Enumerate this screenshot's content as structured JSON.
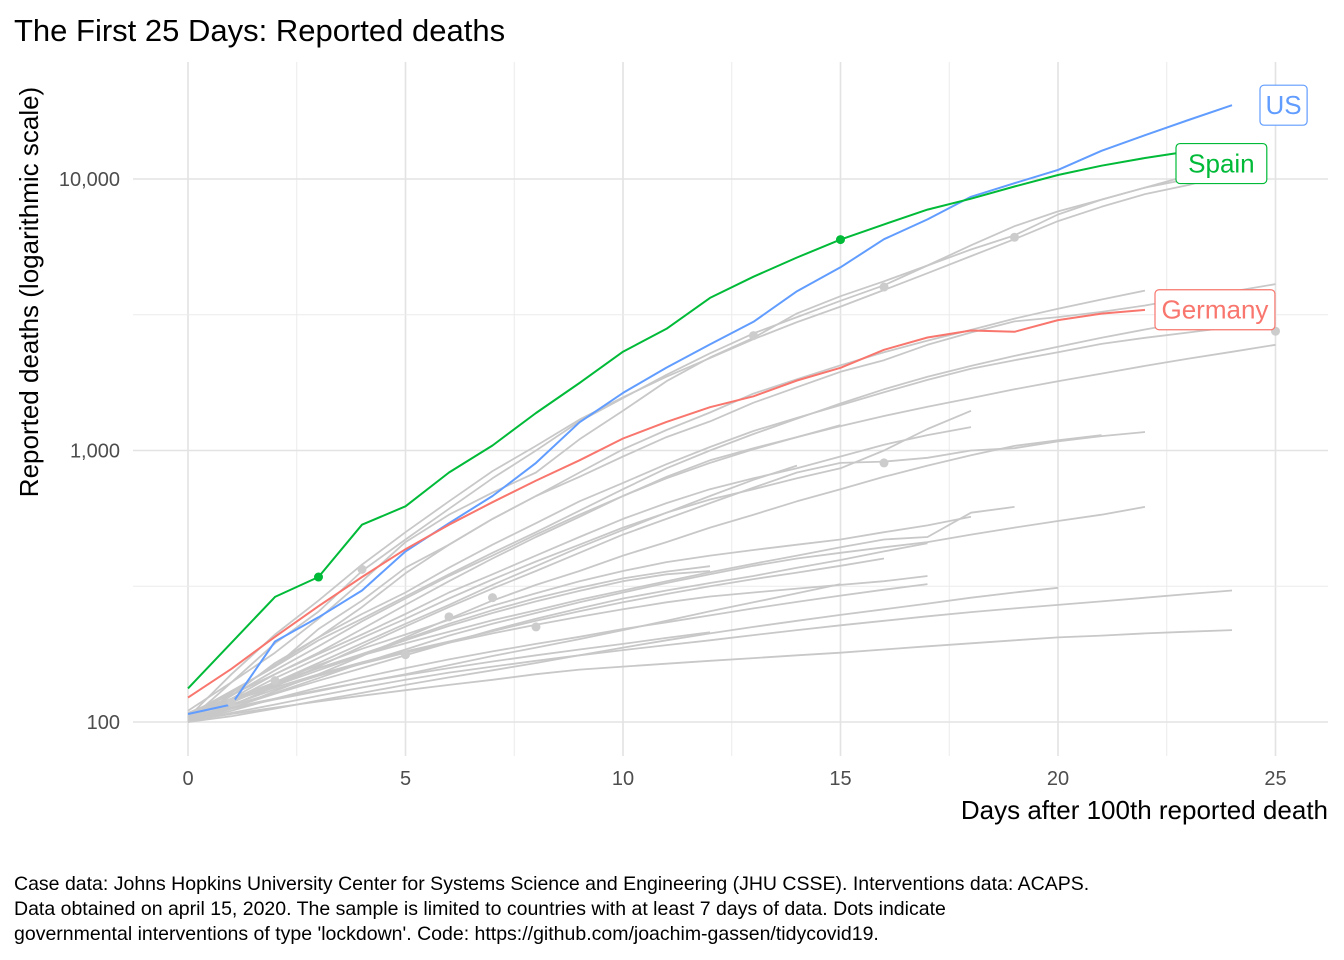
{
  "chart_data": {
    "type": "line",
    "title": "The First 25 Days: Reported deaths",
    "xlabel": "Days after 100th reported death",
    "ylabel": "Reported deaths (logarithmic scale)",
    "y_scale": "log10",
    "xlim": [
      0,
      25
    ],
    "ylim": [
      100,
      19000
    ],
    "x_ticks": [
      0,
      5,
      10,
      15,
      20,
      25
    ],
    "x_tick_labels": [
      "0",
      "5",
      "10",
      "15",
      "20",
      "25"
    ],
    "y_ticks": [
      100,
      1000,
      10000
    ],
    "y_tick_labels": [
      "100",
      "1,000",
      "10,000"
    ],
    "grid": true,
    "highlight_series": [
      {
        "name": "US",
        "color": "#619CFF",
        "values": [
          107,
          116,
          198,
          243,
          305,
          425,
          540,
          680,
          900,
          1270,
          1630,
          2020,
          2460,
          2980,
          3860,
          4730,
          6000,
          7100,
          8600,
          9650,
          10800,
          12700,
          14500,
          16500,
          18700
        ]
      },
      {
        "name": "Spain",
        "color": "#00BA38",
        "values": [
          133,
          196,
          289,
          342,
          533,
          623,
          830,
          1043,
          1375,
          1772,
          2311,
          2808,
          3647,
          4365,
          5138,
          5982,
          6803,
          7716,
          8464,
          9387,
          10348,
          11198,
          11947,
          12641,
          13341
        ]
      },
      {
        "name": "Germany",
        "color": "#F8766D",
        "values": [
          123,
          157,
          206,
          267,
          342,
          433,
          533,
          645,
          775,
          920,
          1107,
          1275,
          1444,
          1584,
          1810,
          2016,
          2349,
          2607,
          2767,
          2736,
          3022,
          3194,
          3294
        ]
      }
    ],
    "background_series": [
      [
        103,
        125,
        165,
        205,
        265,
        353,
        450,
        560,
        680,
        830,
        1010,
        1190,
        1380,
        1620,
        1830,
        2060,
        2300,
        2540,
        2780,
        3060,
        3330,
        3600,
        3880
      ],
      [
        104,
        150,
        210,
        280,
        380,
        500,
        650,
        840,
        1040,
        1300,
        1570,
        1870,
        2190,
        2570,
        2970,
        3390,
        3900,
        4500,
        5200,
        6000,
        7000,
        7900,
        8800,
        9500,
        10500
      ],
      [
        110,
        140,
        195,
        255,
        360,
        470,
        610,
        790,
        1000,
        1280,
        1560,
        1900,
        2280,
        2700,
        3100,
        3560,
        4060,
        4800,
        5500,
        6200,
        7400,
        8400,
        9300,
        10300,
        11000
      ],
      [
        101,
        140,
        180,
        240,
        330,
        460,
        580,
        700,
        830,
        1100,
        1400,
        1800,
        2200,
        2600,
        3200,
        3700,
        4200,
        4800,
        5700,
        6700,
        7600,
        8400,
        9300,
        10000
      ],
      [
        100,
        130,
        160,
        220,
        280,
        370,
        450,
        560,
        680,
        800,
        950,
        1120,
        1280,
        1500,
        1710,
        1950,
        2150,
        2450,
        2720,
        2990,
        3100,
        3240,
        3420,
        3650,
        3850,
        4100
      ],
      [
        105,
        128,
        162,
        205,
        250,
        300,
        370,
        450,
        540,
        650,
        760,
        890,
        1030,
        1180,
        1320,
        1470,
        1640,
        1820,
        2000,
        2150,
        2300,
        2470,
        2600,
        2720,
        2850,
        2950
      ],
      [
        102,
        122,
        150,
        180,
        220,
        270,
        330,
        400,
        480,
        570,
        680,
        800,
        920,
        1020,
        1120,
        1230,
        1340,
        1450,
        1560,
        1680,
        1800,
        1920,
        2050,
        2180,
        2310,
        2450
      ],
      [
        106,
        130,
        160,
        200,
        240,
        290,
        350,
        420,
        500,
        600,
        720,
        860,
        1000,
        1150,
        1310,
        1490,
        1680,
        1870,
        2050,
        2230,
        2410,
        2600,
        2790,
        2980,
        3050,
        3100
      ],
      [
        108,
        126,
        150,
        178,
        210,
        250,
        300,
        350,
        410,
        480,
        560,
        640,
        720,
        790,
        860,
        950,
        1050,
        1140,
        1220
      ],
      [
        103,
        120,
        145,
        172,
        204,
        240,
        285,
        335,
        390,
        450,
        520,
        590,
        660,
        720,
        790,
        860,
        1000,
        1200,
        1400
      ],
      [
        104,
        118,
        140,
        165,
        195,
        230,
        270,
        320,
        375,
        440,
        510,
        590,
        680,
        780,
        880
      ],
      [
        101,
        115,
        135,
        160,
        190,
        225,
        265,
        310,
        360,
        420,
        490,
        560,
        640,
        730,
        830,
        900,
        910,
        940,
        1000,
        1020,
        1080,
        1130,
        1170
      ],
      [
        100,
        112,
        130,
        150,
        175,
        205,
        240,
        280,
        320,
        360,
        410,
        460,
        520,
        580,
        650,
        720,
        800,
        880,
        960,
        1040,
        1090,
        1140
      ],
      [
        102,
        125,
        155,
        190,
        235,
        285,
        345,
        410,
        490,
        580,
        680,
        790,
        900,
        1010,
        1120,
        1240
      ],
      [
        105,
        120,
        140,
        162,
        186,
        210,
        238,
        268,
        298,
        330,
        360,
        388,
        410,
        430,
        450,
        470,
        500,
        530,
        570
      ],
      [
        107,
        122,
        140,
        158,
        176,
        195,
        215,
        237,
        258,
        282,
        305,
        330,
        356,
        383,
        410,
        440,
        470,
        480,
        590,
        620
      ],
      [
        101,
        113,
        127,
        142,
        158,
        176,
        196,
        218,
        240,
        262,
        285,
        305,
        325,
        345,
        370,
        395,
        425,
        455
      ],
      [
        103,
        115,
        128,
        145,
        165,
        185,
        208,
        230,
        252,
        276,
        300,
        325,
        350,
        376,
        400,
        420,
        440,
        460,
        490,
        520,
        550,
        580,
        620
      ],
      [
        104,
        119,
        136,
        155,
        176,
        200,
        226,
        252,
        278,
        304,
        330,
        350,
        360
      ],
      [
        100,
        118,
        138,
        158,
        178,
        202,
        230,
        258,
        286,
        312,
        338,
        358,
        375
      ],
      [
        106,
        120,
        134,
        150,
        166,
        182,
        198,
        216,
        236,
        256,
        276,
        296,
        316,
        336,
        355,
        376,
        400
      ],
      [
        102,
        116,
        132,
        148,
        164,
        180,
        196,
        212,
        228,
        244,
        260,
        276,
        290,
        300,
        310,
        320,
        330,
        345
      ],
      [
        100,
        108,
        116,
        125,
        134,
        143,
        152,
        160,
        168,
        176,
        184,
        192,
        200,
        209,
        218,
        227,
        236,
        245,
        254,
        262,
        270,
        278,
        287,
        296,
        305
      ],
      [
        100,
        110,
        122,
        134,
        146,
        158,
        170,
        182,
        194,
        206,
        220,
        233,
        247,
        262,
        277,
        292,
        307,
        322
      ],
      [
        103,
        112,
        121,
        130,
        140,
        150,
        162,
        175,
        188,
        202,
        218,
        236,
        256,
        276,
        298,
        322
      ],
      [
        101,
        107,
        113,
        119,
        125,
        131,
        137,
        143,
        150,
        156,
        160,
        164,
        168,
        172,
        176,
        180,
        185,
        190,
        195,
        200,
        205,
        208,
        212,
        215,
        218
      ],
      [
        104,
        113,
        122,
        131,
        140,
        149,
        158,
        167,
        176,
        185,
        194,
        204,
        214
      ],
      [
        100,
        105,
        112,
        120,
        128,
        137,
        146,
        155,
        165,
        176,
        188,
        200,
        212,
        224,
        236,
        248,
        260,
        273,
        287,
        300,
        312
      ]
    ],
    "lockdown_dots": [
      {
        "series": "Spain",
        "x": 3,
        "y": 342,
        "color": "#00BA38"
      },
      {
        "series": "Spain",
        "x": 15,
        "y": 5982,
        "color": "#00BA38"
      },
      {
        "x": 4,
        "y": 365,
        "color": "#CCCCCC"
      },
      {
        "x": 5,
        "y": 177,
        "color": "#CCCCCC"
      },
      {
        "x": 6,
        "y": 244,
        "color": "#CCCCCC"
      },
      {
        "x": 7,
        "y": 287,
        "color": "#CCCCCC"
      },
      {
        "x": 8,
        "y": 224,
        "color": "#CCCCCC"
      },
      {
        "x": 13,
        "y": 2650,
        "color": "#CCCCCC"
      },
      {
        "x": 16,
        "y": 4000,
        "color": "#CCCCCC"
      },
      {
        "x": 16,
        "y": 900,
        "color": "#CCCCCC"
      },
      {
        "x": 19,
        "y": 6100,
        "color": "#CCCCCC"
      },
      {
        "x": 25,
        "y": 2750,
        "color": "#CCCCCC"
      },
      {
        "x": 1,
        "y": 118,
        "color": "#CCCCCC"
      },
      {
        "x": 2,
        "y": 142,
        "color": "#CCCCCC"
      }
    ],
    "labels": [
      {
        "text": "US",
        "x": 25,
        "y": 18700,
        "color": "#619CFF"
      },
      {
        "text": "Spain",
        "x": 23.2,
        "y": 11400,
        "color": "#00BA38"
      },
      {
        "text": "Germany",
        "x": 23.2,
        "y": 3300,
        "color": "#F8766D"
      }
    ]
  },
  "caption": {
    "line1": "Case data: Johns Hopkins University Center for Systems Science and Engineering (JHU CSSE). Interventions data: ACAPS.",
    "line2": "Data obtained on april 15, 2020. The sample is limited to countries with at least 7 days of data. Dots indicate",
    "line3": "governmental interventions of type 'lockdown'. Code: https://github.com/joachim-gassen/tidycovid19."
  }
}
